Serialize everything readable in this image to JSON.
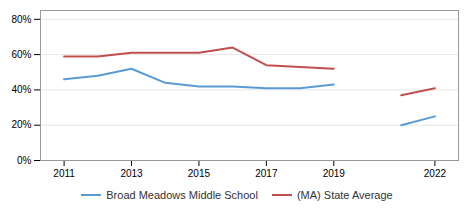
{
  "chart_data": {
    "type": "line",
    "x": [
      2011,
      2012,
      2013,
      2014,
      2015,
      2016,
      2017,
      2018,
      2019,
      2020,
      2021,
      2022
    ],
    "series": [
      {
        "name": "Broad Meadows Middle School",
        "color": "#5b9bd5",
        "values": [
          0.46,
          0.48,
          0.52,
          0.44,
          0.42,
          0.42,
          0.41,
          0.41,
          0.43,
          null,
          0.2,
          0.25
        ]
      },
      {
        "name": "(MA) State Average",
        "color": "#c0504d",
        "values": [
          0.59,
          0.59,
          0.61,
          0.61,
          0.61,
          0.64,
          0.54,
          0.53,
          0.52,
          null,
          0.37,
          0.41
        ]
      }
    ],
    "xlim": [
      2010.3,
      2022.7
    ],
    "ylim": [
      0.0,
      0.85
    ],
    "xticks": [
      2011,
      2013,
      2015,
      2017,
      2019,
      2022
    ],
    "yticks": [
      {
        "value": 0.0,
        "label": "0%"
      },
      {
        "value": 0.2,
        "label": "20%"
      },
      {
        "value": 0.4,
        "label": "40%"
      },
      {
        "value": 0.6,
        "label": "60%"
      },
      {
        "value": 0.8,
        "label": "80%"
      }
    ],
    "grid": true,
    "legend": "bottom"
  }
}
